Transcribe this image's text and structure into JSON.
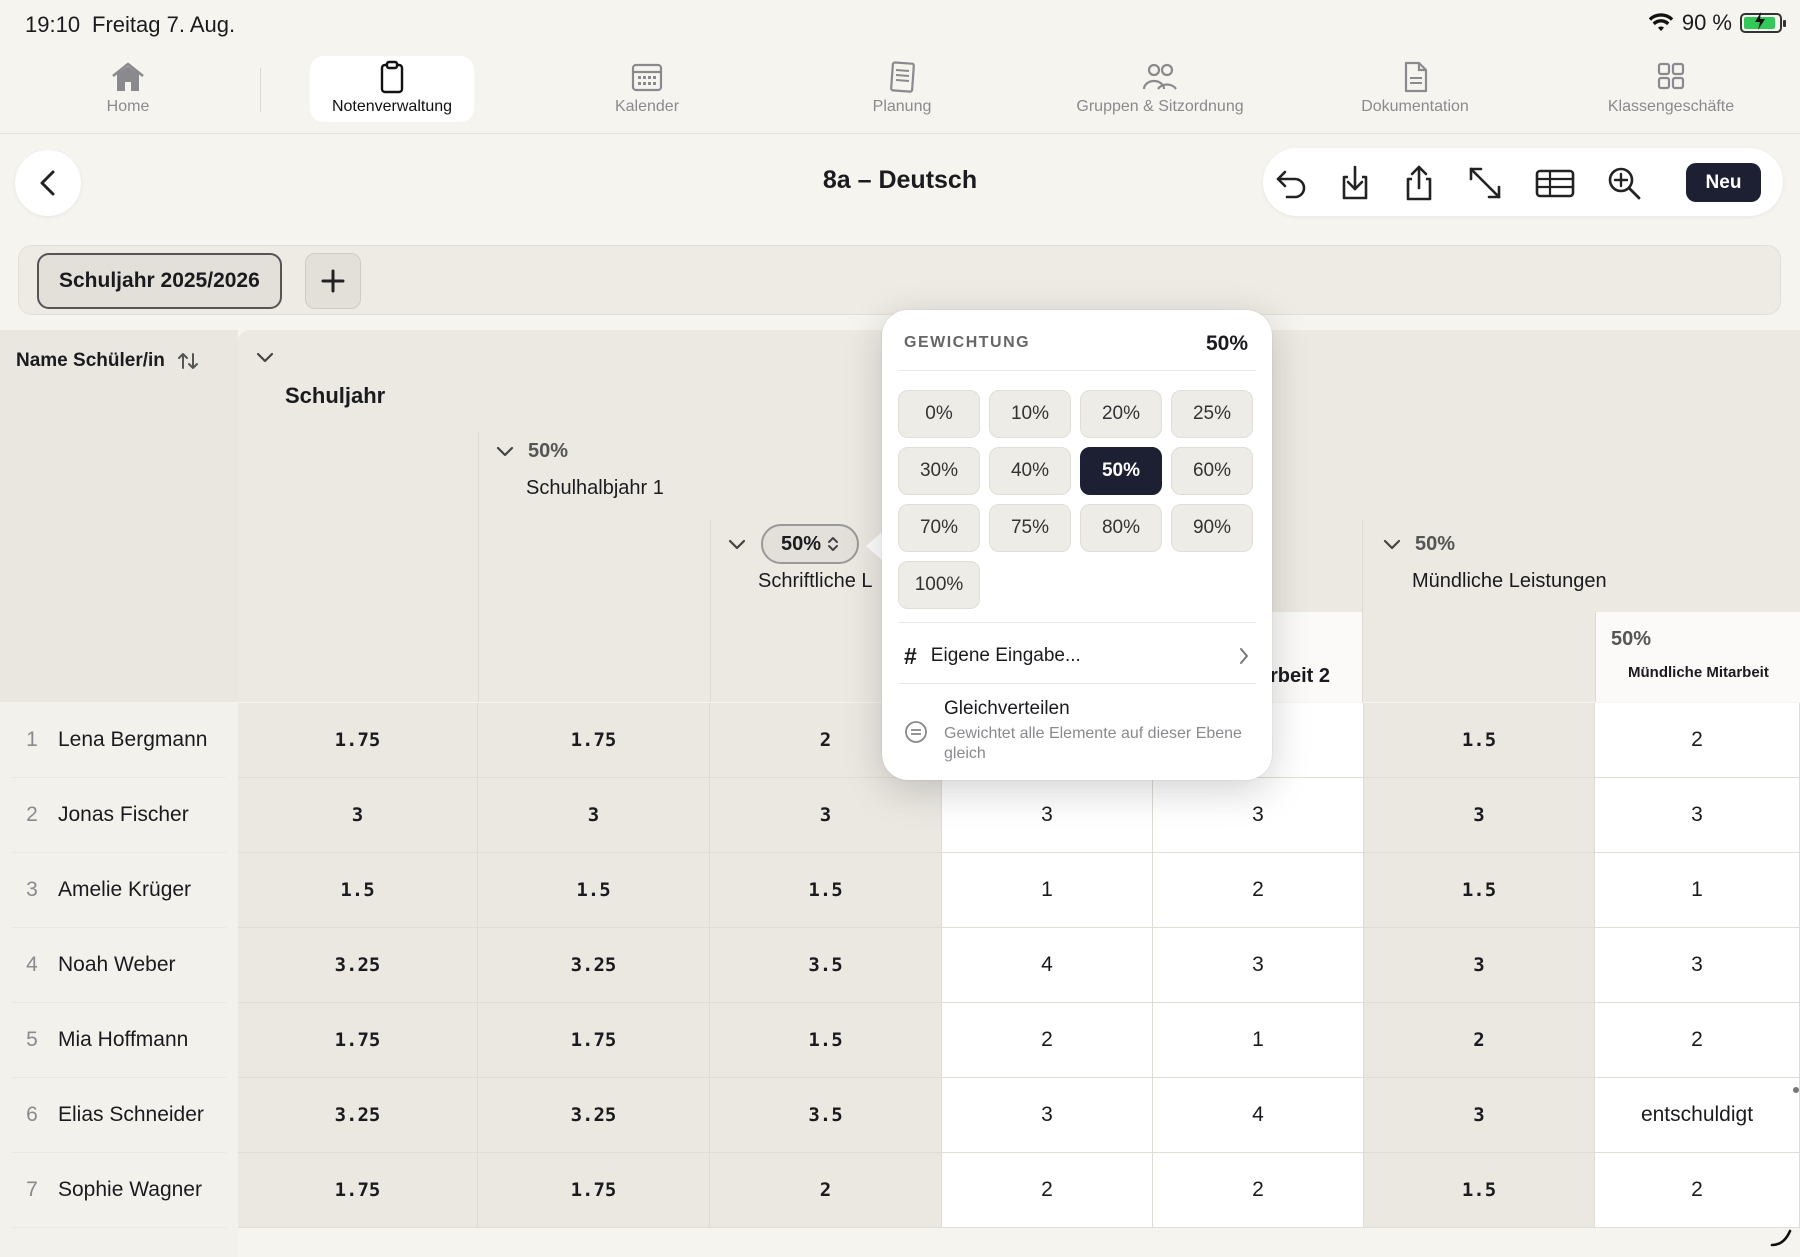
{
  "status_bar": {
    "time": "19:10",
    "date": "Freitag 7. Aug.",
    "battery": "90 %"
  },
  "tabs": [
    {
      "label": "Home",
      "icon": "home-icon"
    },
    {
      "label": "Notenverwaltung",
      "icon": "clipboard-icon",
      "active": true
    },
    {
      "label": "Kalender",
      "icon": "calendar-icon"
    },
    {
      "label": "Planung",
      "icon": "notebook-icon"
    },
    {
      "label": "Gruppen & Sitzordnung",
      "icon": "people-icon"
    },
    {
      "label": "Dokumentation",
      "icon": "document-icon"
    },
    {
      "label": "Klassengeschäfte",
      "icon": "grid-icon"
    }
  ],
  "header": {
    "title": "8a – Deutsch",
    "new_label": "Neu"
  },
  "year_tabs": {
    "current": "Schuljahr 2025/2026"
  },
  "table": {
    "name_header": "Name Schüler/in",
    "col_schuljahr": "Schuljahr",
    "col_halbjahr_pct": "50%",
    "col_halbjahr": "Schulhalbjahr 1",
    "col_schriftlich_pct": "50%",
    "col_schriftlich": "Schriftliche L",
    "col_arbeit2": "rbeit 2",
    "col_muendlich_pct": "50%",
    "col_muendlich": "Mündliche Leistungen",
    "col_mitarbeit_pct": "50%",
    "col_mitarbeit": "Mündliche Mitarbeit",
    "rows": [
      {
        "num": "1",
        "name": "Lena Bergmann",
        "cells": [
          "1.75",
          "1.75",
          "2",
          "",
          "",
          "1.5",
          "2"
        ]
      },
      {
        "num": "2",
        "name": "Jonas Fischer",
        "cells": [
          "3",
          "3",
          "3",
          "3",
          "3",
          "3",
          "3"
        ]
      },
      {
        "num": "3",
        "name": "Amelie Krüger",
        "cells": [
          "1.5",
          "1.5",
          "1.5",
          "1",
          "2",
          "1.5",
          "1"
        ]
      },
      {
        "num": "4",
        "name": "Noah Weber",
        "cells": [
          "3.25",
          "3.25",
          "3.5",
          "4",
          "3",
          "3",
          "3"
        ]
      },
      {
        "num": "5",
        "name": "Mia Hoffmann",
        "cells": [
          "1.75",
          "1.75",
          "1.5",
          "2",
          "1",
          "2",
          "2"
        ]
      },
      {
        "num": "6",
        "name": "Elias Schneider",
        "cells": [
          "3.25",
          "3.25",
          "3.5",
          "3",
          "4",
          "3",
          "entschuldigt"
        ]
      },
      {
        "num": "7",
        "name": "Sophie Wagner",
        "cells": [
          "1.75",
          "1.75",
          "2",
          "2",
          "2",
          "1.5",
          "2"
        ]
      }
    ]
  },
  "popover": {
    "title": "GEWICHTUNG",
    "value": "50%",
    "options": [
      "0%",
      "10%",
      "20%",
      "25%",
      "30%",
      "40%",
      "50%",
      "60%",
      "70%",
      "75%",
      "80%",
      "90%",
      "100%"
    ],
    "selected": "50%",
    "custom_label": "Eigene Eingabe...",
    "equal_title": "Gleichverteilen",
    "equal_sub": "Gewichtet alle Elemente auf dieser Ebene gleich"
  }
}
